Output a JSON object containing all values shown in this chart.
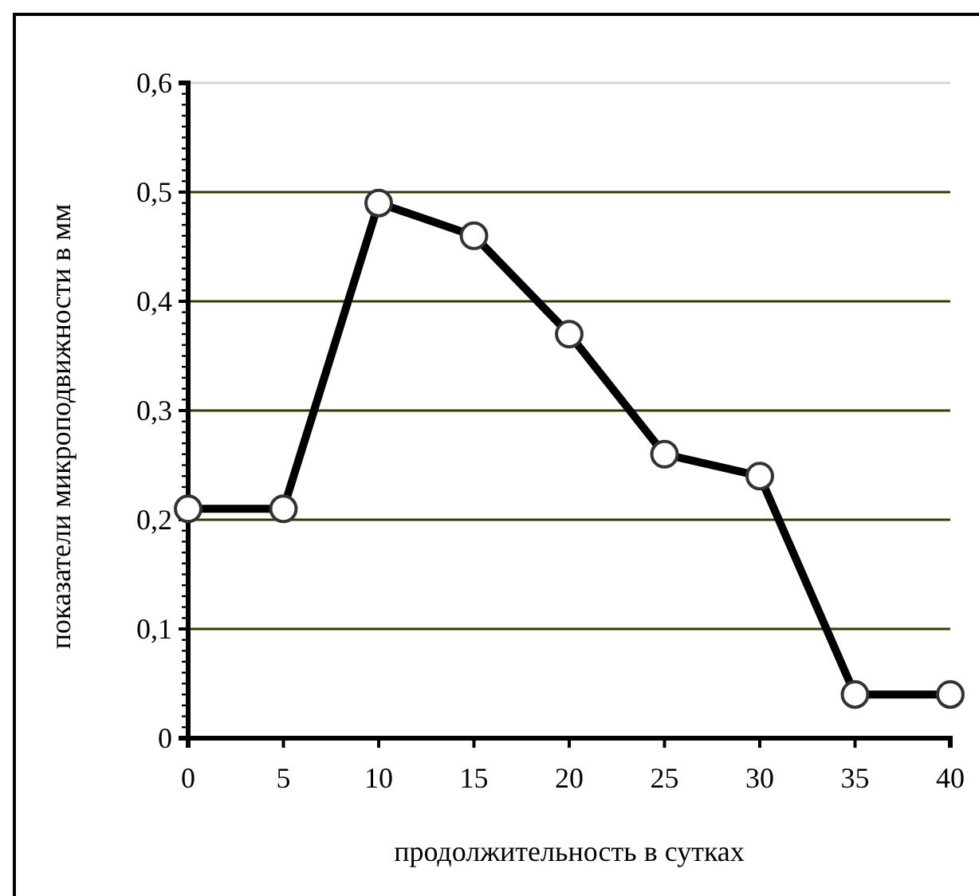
{
  "chart_data": {
    "type": "line",
    "xlabel": "продолжительность в сутках",
    "ylabel": "показатели микроподвижности в мм",
    "x": [
      0,
      5,
      10,
      15,
      20,
      25,
      30,
      35,
      40
    ],
    "series": [
      {
        "color": "#000000",
        "values": [
          0.21,
          0.21,
          0.49,
          0.46,
          0.37,
          0.26,
          0.24,
          0.04,
          0.04
        ]
      }
    ],
    "xlim": [
      0,
      40
    ],
    "xticks": [
      0,
      5,
      10,
      15,
      20,
      25,
      30,
      35,
      40
    ],
    "ylim": [
      0,
      0.6
    ],
    "yticks": [
      {
        "value": 0,
        "label": "0"
      },
      {
        "value": 0.1,
        "label": "0,1"
      },
      {
        "value": 0.2,
        "label": "0,2"
      },
      {
        "value": 0.3,
        "label": "0,3"
      },
      {
        "value": 0.4,
        "label": "0,4"
      },
      {
        "value": 0.5,
        "label": "0,5"
      },
      {
        "value": 0.6,
        "label": "0,6"
      }
    ],
    "grid": "y",
    "marker": "circle",
    "line_style": "solid"
  }
}
